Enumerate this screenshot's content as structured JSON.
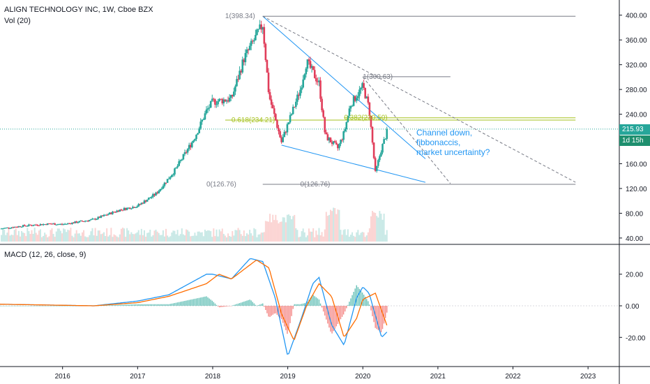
{
  "header": {
    "title": "ALIGN TECHNOLOGY INC, 1W, Cboe BZX",
    "volume_label": "Vol (20)",
    "macd_label": "MACD (12, 26, close, 9)"
  },
  "price_tags": {
    "last_price": "215.93",
    "countdown": "1d 15h"
  },
  "annotation": {
    "lines": [
      "Channel down,",
      "fibbonaccis,",
      "market uncertainty?"
    ]
  },
  "fib_labels": [
    {
      "text": "1(398.34)",
      "value": 398.34,
      "color": "#787b86"
    },
    {
      "text": "1(300.63)",
      "value": 300.63,
      "color": "#787b86"
    },
    {
      "text": "0.382(230.50)",
      "value": 230.5,
      "color": "#a6c21f"
    },
    {
      "text": "0.618(234.21)",
      "value": 234.21,
      "color": "#a6c21f"
    },
    {
      "text": "0(126.76)",
      "value": 126.76,
      "color": "#787b86"
    },
    {
      "text": "0(126.76)",
      "value": 126.76,
      "color": "#787b86"
    }
  ],
  "colors": {
    "up": "#26a69a",
    "down": "#ef5350",
    "candle_up": "#26a69a",
    "candle_down": "#e03d5a",
    "macd_line": "#2196f3",
    "signal_line": "#ff6d00",
    "channel": "#2196f3",
    "fib": "#a6c21f",
    "price_tag": "#26a69a"
  },
  "chart_data": [
    {
      "type": "candlestick",
      "title": "ALIGN TECHNOLOGY INC, 1W, Cboe BZX",
      "x_axis": {
        "type": "date",
        "ticks": [
          "2016",
          "2017",
          "2018",
          "2019",
          "2020",
          "2021",
          "2022",
          "2023"
        ],
        "range": [
          "2015-03",
          "2023-06"
        ]
      },
      "y_axis": {
        "range": [
          32,
          420
        ],
        "ticks": [
          "40.00",
          "80.00",
          "120.00",
          "160.00",
          "200.00",
          "240.00",
          "280.00",
          "320.00",
          "360.00",
          "400.00"
        ],
        "side": "right"
      },
      "series": [
        {
          "name": "price",
          "close_path": [
            [
              "2015-03",
              55
            ],
            [
              "2015-07",
              60
            ],
            [
              "2015-11",
              63
            ],
            [
              "2016-01",
              62
            ],
            [
              "2016-06",
              70
            ],
            [
              "2016-10",
              85
            ],
            [
              "2017-01",
              92
            ],
            [
              "2017-04",
              112
            ],
            [
              "2017-07",
              150
            ],
            [
              "2017-10",
              200
            ],
            [
              "2017-12",
              245
            ],
            [
              "2018-01",
              260
            ],
            [
              "2018-04",
              265
            ],
            [
              "2018-06",
              330
            ],
            [
              "2018-09",
              385
            ],
            [
              "2018-10",
              270
            ],
            [
              "2018-12",
              195
            ],
            [
              "2019-03",
              280
            ],
            [
              "2019-04",
              325
            ],
            [
              "2019-06",
              290
            ],
            [
              "2019-07",
              205
            ],
            [
              "2019-09",
              185
            ],
            [
              "2019-10",
              210
            ],
            [
              "2019-11",
              255
            ],
            [
              "2020-01",
              285
            ],
            [
              "2020-02",
              250
            ],
            [
              "2020-03",
              145
            ],
            [
              "2020-04",
              185
            ],
            [
              "2020-05",
              215.93
            ]
          ]
        }
      ],
      "annotations": {
        "fib_levels": [
          398.34,
          300.63,
          234.21,
          230.5,
          126.76
        ],
        "channel_upper": [
          [
            "2018-09",
            398.34
          ],
          [
            "2020-11",
            168
          ]
        ],
        "channel_lower": [
          [
            "2018-12",
            190
          ],
          [
            "2020-11",
            130
          ]
        ],
        "dashed_trend_1": [
          [
            "2018-09",
            398.34
          ],
          [
            "2022-11",
            130
          ]
        ],
        "dashed_trend_2": [
          [
            "2020-01",
            300
          ],
          [
            "2021-03",
            128
          ]
        ],
        "current_price": 215.93
      }
    },
    {
      "type": "bar",
      "title": "Vol (20)",
      "description_values": "weekly volume bars beneath price"
    },
    {
      "type": "line",
      "title": "MACD (12, 26, close, 9)",
      "y_axis": {
        "range": [
          -38,
          38
        ],
        "ticks": [
          "20.00",
          "0.00",
          "-20.00"
        ]
      },
      "series": [
        {
          "name": "MACD",
          "points": [
            [
              "2015-03",
              1
            ],
            [
              "2016-06",
              0
            ],
            [
              "2017-01",
              3
            ],
            [
              "2017-06",
              7
            ],
            [
              "2017-12",
              20
            ],
            [
              "2018-01",
              20
            ],
            [
              "2018-04",
              17
            ],
            [
              "2018-07",
              30
            ],
            [
              "2018-09",
              28
            ],
            [
              "2018-11",
              5
            ],
            [
              "2019-01",
              -32
            ],
            [
              "2019-03",
              -10
            ],
            [
              "2019-05",
              14
            ],
            [
              "2019-06",
              18
            ],
            [
              "2019-08",
              -12
            ],
            [
              "2019-10",
              -25
            ],
            [
              "2019-12",
              5
            ],
            [
              "2020-01",
              12
            ],
            [
              "2020-02",
              8
            ],
            [
              "2020-04",
              -20
            ],
            [
              "2020-05",
              -16
            ]
          ]
        },
        {
          "name": "Signal",
          "points": [
            [
              "2015-03",
              1
            ],
            [
              "2016-06",
              0
            ],
            [
              "2017-01",
              2
            ],
            [
              "2017-06",
              6
            ],
            [
              "2017-12",
              14
            ],
            [
              "2018-02",
              20
            ],
            [
              "2018-04",
              17
            ],
            [
              "2018-08",
              29
            ],
            [
              "2018-10",
              24
            ],
            [
              "2018-12",
              -5
            ],
            [
              "2019-02",
              -22
            ],
            [
              "2019-04",
              0
            ],
            [
              "2019-06",
              14
            ],
            [
              "2019-08",
              6
            ],
            [
              "2019-10",
              -20
            ],
            [
              "2019-12",
              -8
            ],
            [
              "2020-01",
              4
            ],
            [
              "2020-03",
              8
            ],
            [
              "2020-05",
              -14
            ]
          ]
        }
      ]
    }
  ]
}
